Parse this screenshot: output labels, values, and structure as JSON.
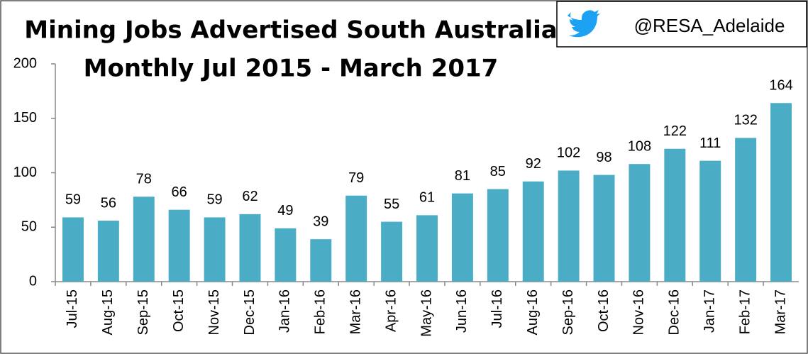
{
  "chart_data": {
    "type": "bar",
    "title": "Mining Jobs Advertised South Australia",
    "subtitle": "Monthly Jul 2015 - March 2017",
    "annotation": "@RESA_Adelaide",
    "categories": [
      "Jul-15",
      "Aug-15",
      "Sep-15",
      "Oct-15",
      "Nov-15",
      "Dec-15",
      "Jan-16",
      "Feb-16",
      "Mar-16",
      "Apr-16",
      "May-16",
      "Jun-16",
      "Jul-16",
      "Aug-16",
      "Sep-16",
      "Oct-16",
      "Nov-16",
      "Dec-16",
      "Jan-17",
      "Feb-17",
      "Mar-17"
    ],
    "values": [
      59,
      56,
      78,
      66,
      59,
      62,
      49,
      39,
      79,
      55,
      61,
      81,
      85,
      92,
      102,
      98,
      108,
      122,
      111,
      132,
      164
    ],
    "color": "#4bacc6",
    "ylim": [
      0,
      200
    ],
    "yticks": [
      0,
      50,
      100,
      150,
      200
    ],
    "grid": false
  }
}
